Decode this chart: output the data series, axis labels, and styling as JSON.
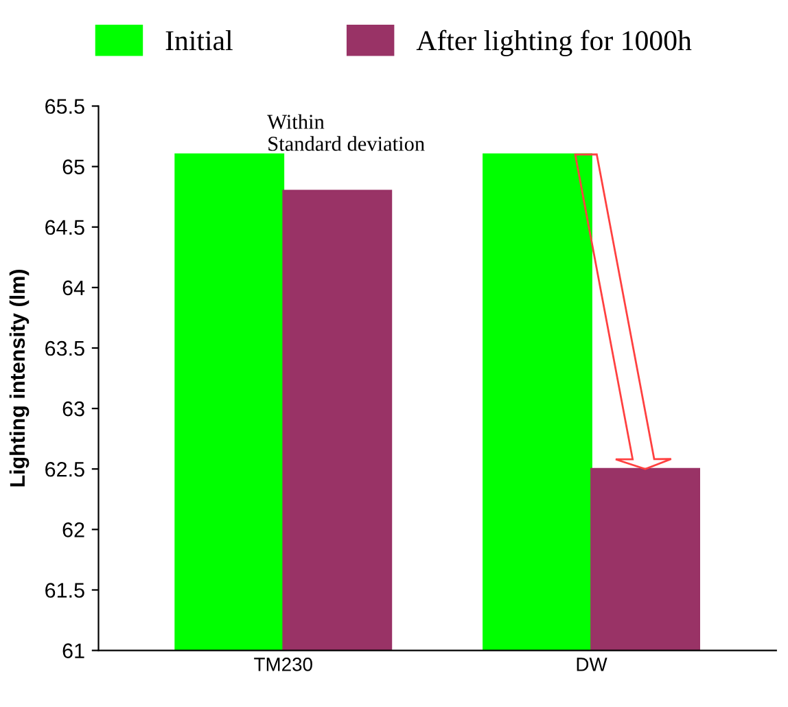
{
  "chart_data": {
    "type": "bar",
    "ylabel": "Lighting intensity (lm)",
    "categories": [
      "TM230",
      "DW"
    ],
    "series": [
      {
        "name": "Initial",
        "color": "#00ff00",
        "values": [
          65.1,
          65.1
        ]
      },
      {
        "name": "After lighting for 1000h",
        "color": "#993366",
        "values": [
          64.8,
          62.5
        ]
      }
    ],
    "ylim": [
      61,
      65.5
    ],
    "yticks": [
      61,
      61.5,
      62,
      62.5,
      63,
      63.5,
      64,
      64.5,
      65,
      65.5
    ],
    "grid": false,
    "legend": "top",
    "annotations": [
      "Within\nStandard deviation"
    ]
  }
}
